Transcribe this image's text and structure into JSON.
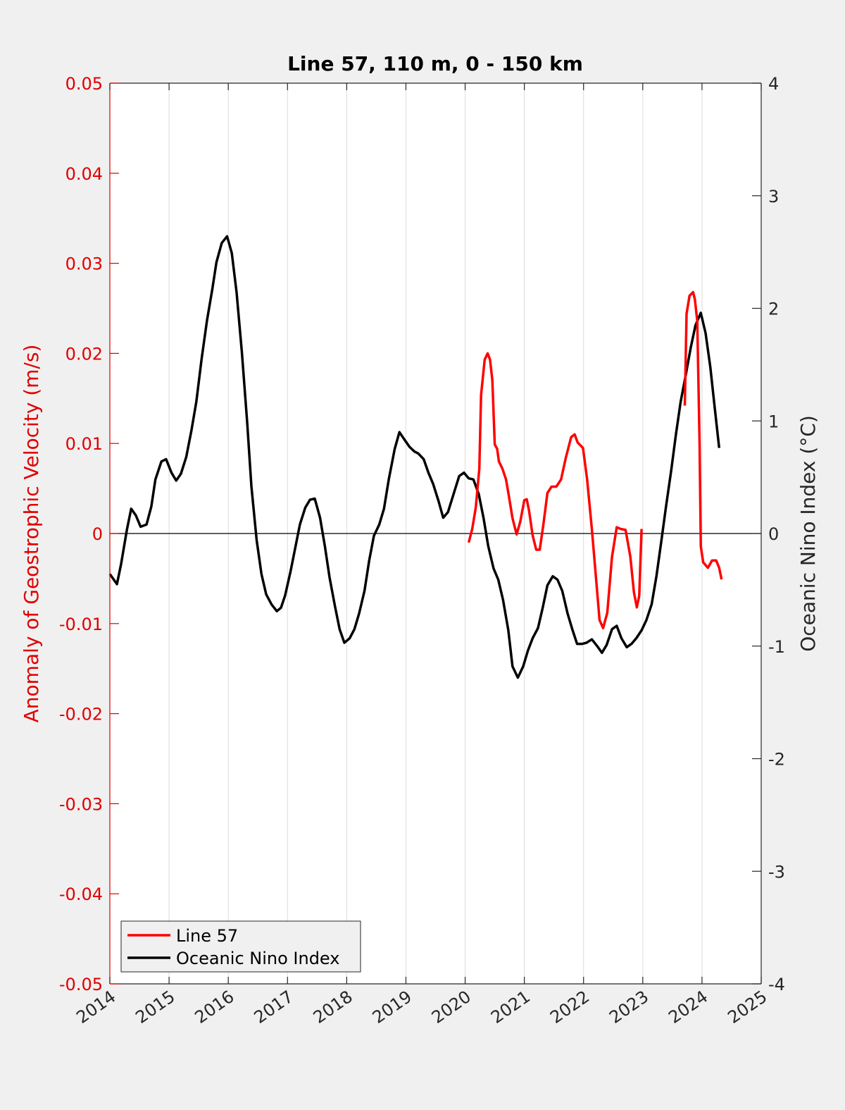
{
  "chart_data": {
    "type": "line",
    "title": "Line 57, 110 m, 0 - 150 km",
    "xlabel": "",
    "ylabel_left": "Anomaly of Geostrophic Velocity (m/s)",
    "ylabel_right": "Oceanic Nino Index (°C)",
    "xlim": [
      2014,
      2025
    ],
    "ylim_left": [
      -0.05,
      0.05
    ],
    "ylim_right": [
      -4,
      4
    ],
    "grid": "x",
    "legend_position": "bottom-left",
    "x_tick_labels": [
      "2014",
      "2015",
      "2016",
      "2017",
      "2018",
      "2019",
      "2020",
      "2021",
      "2022",
      "2023",
      "2024",
      "2025"
    ],
    "y_left_tick_labels": [
      "0.05",
      "0.04",
      "0.03",
      "0.02",
      "0.01",
      "0",
      "-0.01",
      "-0.02",
      "-0.03",
      "-0.04",
      "-0.05"
    ],
    "y_right_tick_labels": [
      "4",
      "3",
      "2",
      "1",
      "0",
      "-1",
      "-2",
      "-3",
      "-4"
    ],
    "colors": {
      "line57": "#ff0000",
      "oni": "#000000",
      "left_axis": "#e00000",
      "right_axis": "#262626"
    },
    "series": [
      {
        "name": "Line 57",
        "axis": "left",
        "color": "#ff0000",
        "segments": [
          {
            "x": [
              2020.06,
              2020.12,
              2020.18,
              2020.24,
              2020.27,
              2020.33,
              2020.38,
              2020.42,
              2020.46,
              2020.5,
              2020.54,
              2020.57,
              2020.63,
              2020.69,
              2020.74,
              2020.8,
              2020.87,
              2020.93,
              2021.0,
              2021.04,
              2021.08,
              2021.14,
              2021.2,
              2021.26,
              2021.32,
              2021.39,
              2021.46,
              2021.54,
              2021.62,
              2021.7,
              2021.79,
              2021.85,
              2021.9,
              2021.99,
              2022.06,
              2022.14,
              2022.2,
              2022.27,
              2022.33,
              2022.4,
              2022.48,
              2022.56,
              2022.63,
              2022.71,
              2022.79,
              2022.85,
              2022.9,
              2022.94,
              2022.98
            ],
            "y": [
              -0.001,
              0.0005,
              0.0029,
              0.0072,
              0.0154,
              0.0193,
              0.02,
              0.0193,
              0.017,
              0.0099,
              0.0094,
              0.008,
              0.0072,
              0.006,
              0.0041,
              0.0017,
              -0.0001,
              0.0013,
              0.0037,
              0.0038,
              0.0025,
              -0.0002,
              -0.0018,
              -0.0018,
              0.0009,
              0.0045,
              0.0052,
              0.0052,
              0.006,
              0.0084,
              0.0107,
              0.011,
              0.0101,
              0.0095,
              0.006,
              0.0005,
              -0.0041,
              -0.0096,
              -0.0105,
              -0.0088,
              -0.0026,
              0.0007,
              0.0005,
              0.0004,
              -0.0026,
              -0.0065,
              -0.0082,
              -0.0069,
              0.0005
            ]
          },
          {
            "x": [
              2023.71,
              2023.74,
              2023.79,
              2023.85,
              2023.88,
              2023.92,
              2023.96,
              2023.98,
              2024.02,
              2024.1,
              2024.17,
              2024.24,
              2024.29,
              2024.33
            ],
            "y": [
              0.0142,
              0.0244,
              0.0264,
              0.0268,
              0.026,
              0.0236,
              0.0099,
              -0.0014,
              -0.0032,
              -0.0038,
              -0.003,
              -0.003,
              -0.0038,
              -0.0051
            ]
          }
        ]
      },
      {
        "name": "Oceanic Nino Index",
        "axis": "right",
        "color": "#000000",
        "x": [
          2014.0,
          2014.12,
          2014.19,
          2014.29,
          2014.36,
          2014.44,
          2014.52,
          2014.62,
          2014.7,
          2014.77,
          2014.87,
          2014.95,
          2015.04,
          2015.12,
          2015.2,
          2015.29,
          2015.38,
          2015.46,
          2015.55,
          2015.64,
          2015.73,
          2015.8,
          2015.89,
          2015.98,
          2016.06,
          2016.14,
          2016.23,
          2016.32,
          2016.39,
          2016.48,
          2016.56,
          2016.64,
          2016.73,
          2016.82,
          2016.89,
          2016.96,
          2017.05,
          2017.13,
          2017.21,
          2017.3,
          2017.38,
          2017.46,
          2017.55,
          2017.63,
          2017.71,
          2017.8,
          2017.88,
          2017.96,
          2018.05,
          2018.13,
          2018.21,
          2018.3,
          2018.38,
          2018.46,
          2018.55,
          2018.63,
          2018.71,
          2018.81,
          2018.89,
          2018.98,
          2019.06,
          2019.14,
          2019.21,
          2019.3,
          2019.38,
          2019.46,
          2019.55,
          2019.63,
          2019.71,
          2019.81,
          2019.9,
          2019.98,
          2020.06,
          2020.14,
          2020.23,
          2020.31,
          2020.39,
          2020.48,
          2020.56,
          2020.64,
          2020.73,
          2020.8,
          2020.89,
          2020.98,
          2021.06,
          2021.14,
          2021.23,
          2021.31,
          2021.39,
          2021.48,
          2021.56,
          2021.64,
          2021.73,
          2021.81,
          2021.89,
          2021.98,
          2022.05,
          2022.14,
          2022.23,
          2022.31,
          2022.39,
          2022.48,
          2022.56,
          2022.64,
          2022.73,
          2022.81,
          2022.89,
          2022.98,
          2023.06,
          2023.15,
          2023.23,
          2023.31,
          2023.39,
          2023.48,
          2023.56,
          2023.64,
          2023.73,
          2023.81,
          2023.89,
          2023.98,
          2024.06,
          2024.14,
          2024.21,
          2024.29
        ],
        "y": [
          -0.36,
          -0.45,
          -0.27,
          0.04,
          0.22,
          0.16,
          0.06,
          0.08,
          0.24,
          0.48,
          0.64,
          0.66,
          0.54,
          0.47,
          0.53,
          0.68,
          0.92,
          1.17,
          1.55,
          1.89,
          2.17,
          2.41,
          2.58,
          2.64,
          2.49,
          2.14,
          1.61,
          0.98,
          0.42,
          -0.06,
          -0.36,
          -0.54,
          -0.63,
          -0.69,
          -0.66,
          -0.55,
          -0.34,
          -0.13,
          0.08,
          0.23,
          0.3,
          0.31,
          0.14,
          -0.11,
          -0.39,
          -0.64,
          -0.85,
          -0.97,
          -0.93,
          -0.85,
          -0.71,
          -0.51,
          -0.24,
          -0.02,
          0.08,
          0.22,
          0.48,
          0.75,
          0.9,
          0.83,
          0.77,
          0.73,
          0.71,
          0.66,
          0.54,
          0.44,
          0.29,
          0.14,
          0.19,
          0.36,
          0.51,
          0.54,
          0.49,
          0.48,
          0.35,
          0.14,
          -0.11,
          -0.31,
          -0.41,
          -0.59,
          -0.86,
          -1.18,
          -1.28,
          -1.18,
          -1.04,
          -0.93,
          -0.84,
          -0.66,
          -0.46,
          -0.38,
          -0.41,
          -0.51,
          -0.71,
          -0.85,
          -0.98,
          -0.98,
          -0.97,
          -0.94,
          -1.0,
          -1.06,
          -0.99,
          -0.85,
          -0.82,
          -0.93,
          -1.01,
          -0.98,
          -0.93,
          -0.86,
          -0.77,
          -0.63,
          -0.38,
          -0.08,
          0.23,
          0.56,
          0.88,
          1.17,
          1.42,
          1.65,
          1.85,
          1.96,
          1.78,
          1.48,
          1.14,
          0.76
        ]
      }
    ],
    "legend": [
      "Line 57",
      "Oceanic Nino Index"
    ]
  }
}
